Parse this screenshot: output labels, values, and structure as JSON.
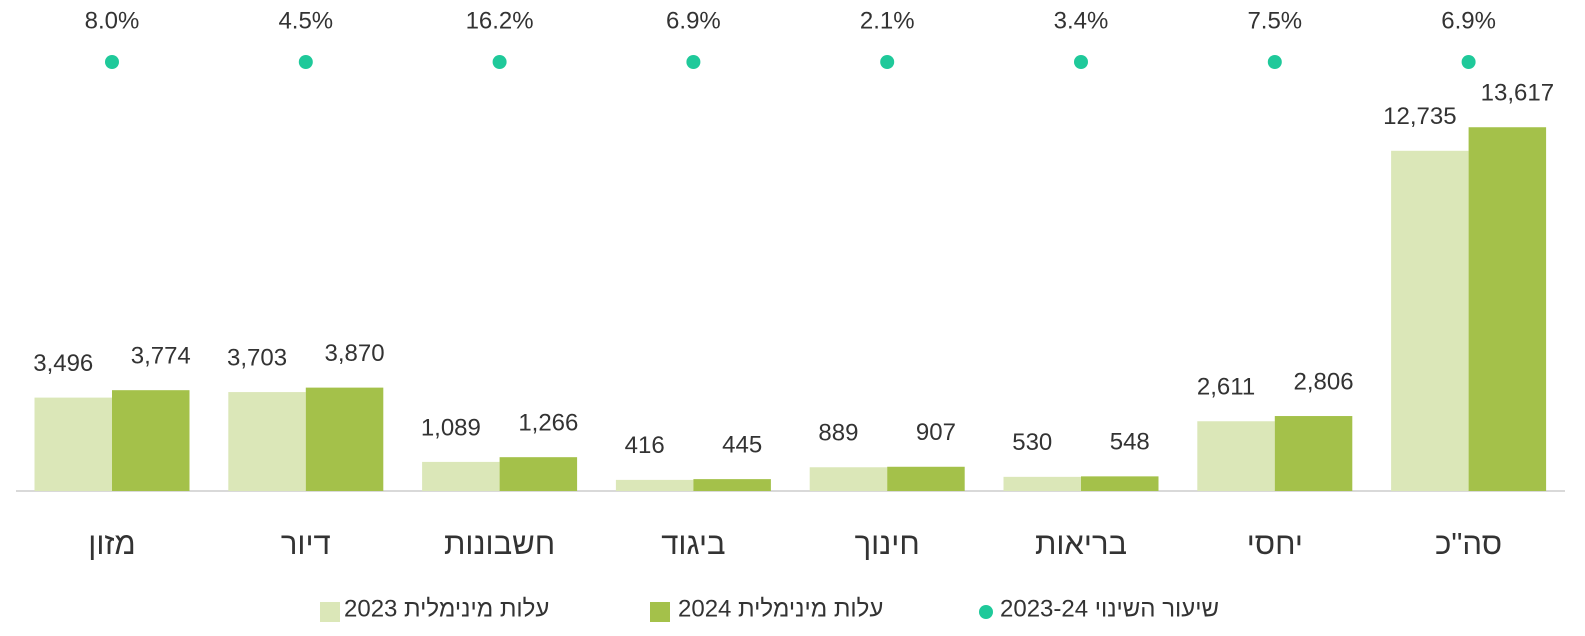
{
  "chart_data": {
    "type": "bar",
    "categories": [
      "מזון",
      "דיור",
      "חשבונות",
      "ביגוד",
      "חינוך",
      "בריאות",
      "יחסי",
      "סה\"כ"
    ],
    "series": [
      {
        "name": "עלות מינימלית 2023",
        "color": "#dbe7b8",
        "values": [
          3496,
          3703,
          1089,
          416,
          889,
          530,
          2611,
          12735
        ],
        "value_labels": [
          "3,496",
          "3,703",
          "1,089",
          "416",
          "889",
          "530",
          "2,611",
          "12,735"
        ]
      },
      {
        "name": "עלות מינימלית 2024",
        "color": "#a4c14a",
        "values": [
          3774,
          3870,
          1266,
          445,
          907,
          548,
          2806,
          13617
        ],
        "value_labels": [
          "3,774",
          "3,870",
          "1,266",
          "445",
          "907",
          "548",
          "2,806",
          "13,617"
        ]
      },
      {
        "name": "שיעור השינוי 2023-24",
        "color": "#1fc99a",
        "type": "scatter",
        "values": [
          8.0,
          4.5,
          16.2,
          6.9,
          2.1,
          3.4,
          7.5,
          6.9
        ],
        "value_labels": [
          "8.0%",
          "4.5%",
          "16.2%",
          "6.9%",
          "2.1%",
          "3.4%",
          "7.5%",
          "6.9%"
        ]
      }
    ],
    "ylim": [
      0,
      14000
    ]
  }
}
